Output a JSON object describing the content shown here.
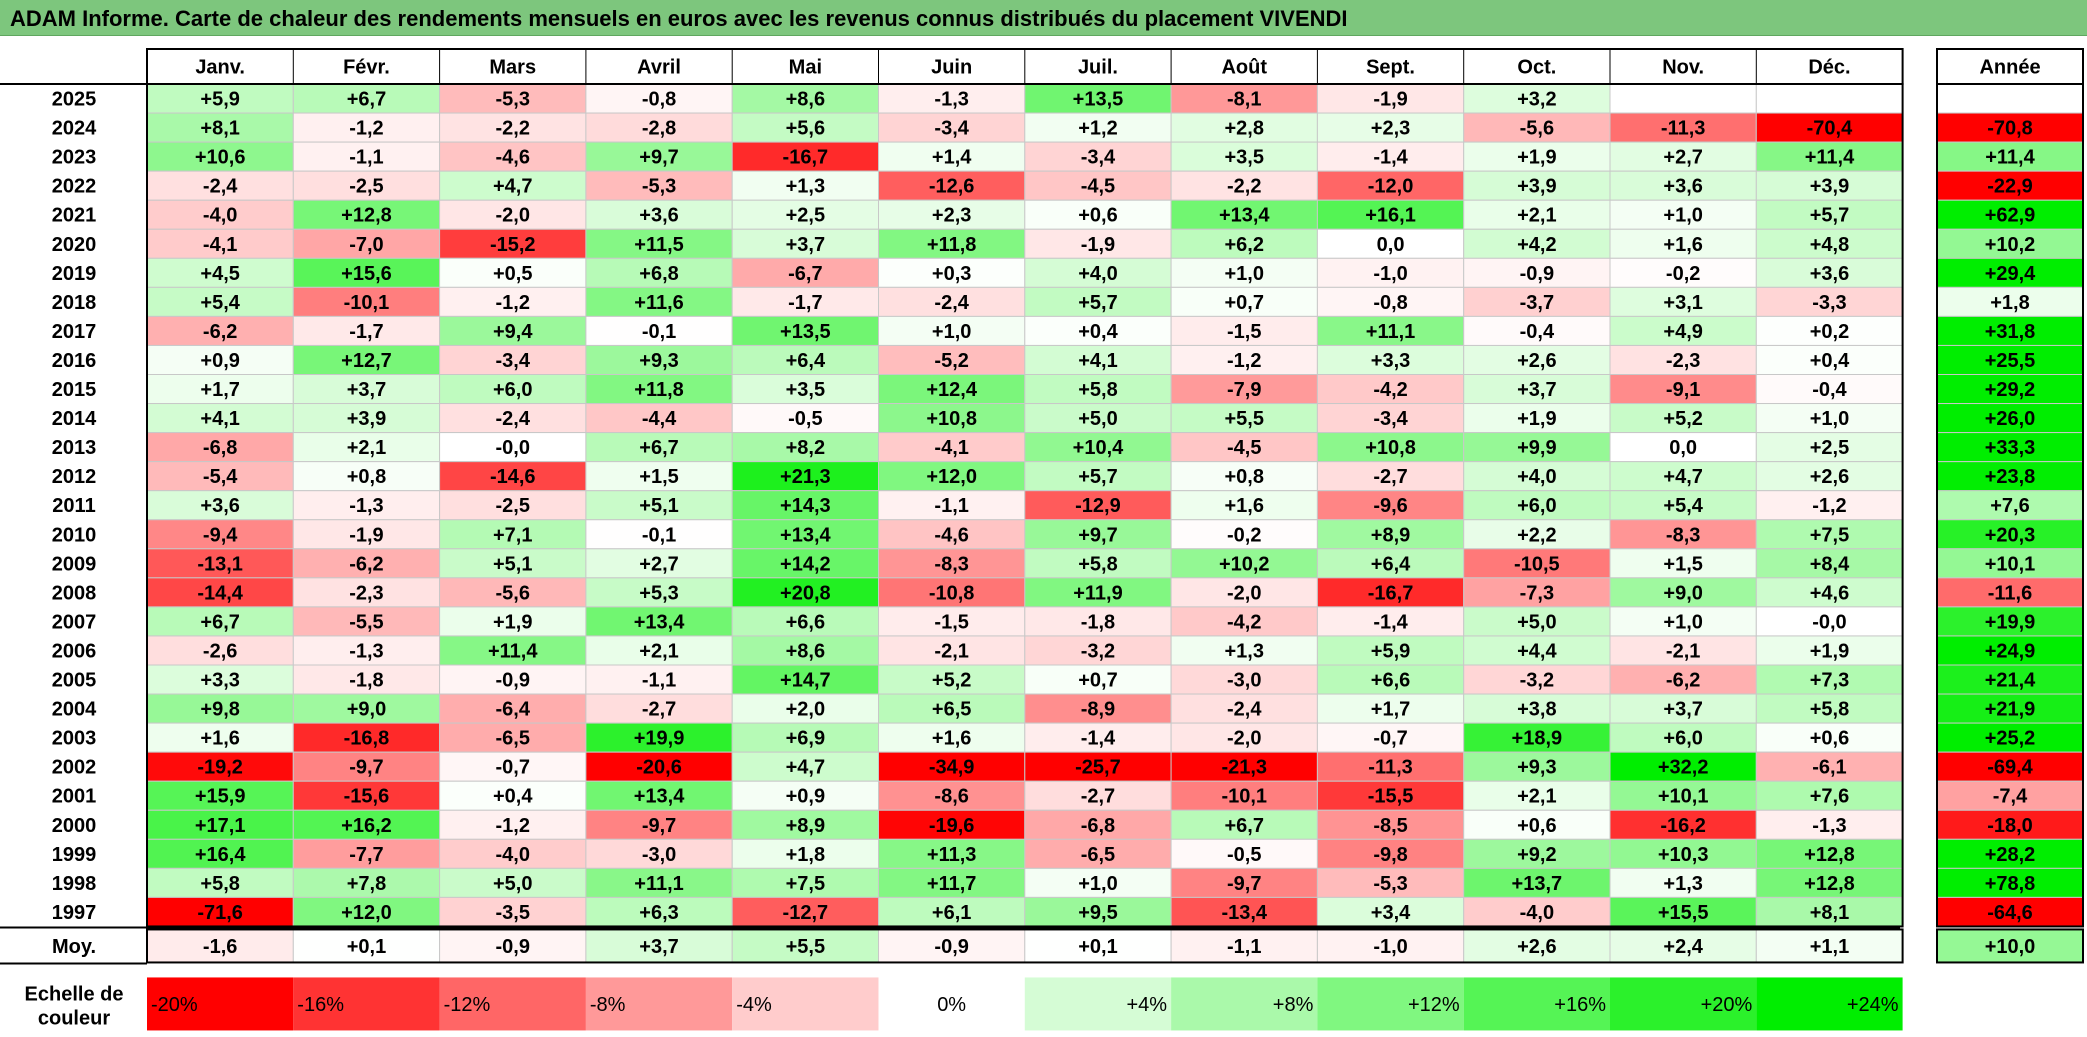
{
  "title": "ADAM Informe. Carte de chaleur des rendements mensuels en euros avec les revenus connus distribués du placement VIVENDI",
  "months": [
    "Janv.",
    "Févr.",
    "Mars",
    "Avril",
    "Mai",
    "Juin",
    "Juil.",
    "Août",
    "Sept.",
    "Oct.",
    "Nov.",
    "Déc."
  ],
  "year_header": "Année",
  "avg_label": "Moy.",
  "scale_label_line1": "Echelle de",
  "scale_label_line2": "couleur",
  "colors": {
    "title_bar": "#7dc67d",
    "negative_max": "#ff0000",
    "neutral": "#ffffff",
    "positive_max": "#00ee00"
  },
  "chart_data": {
    "type": "heatmap",
    "color_scale": {
      "min": -20,
      "max": 24,
      "steps": [
        -20,
        -16,
        -12,
        -8,
        -4,
        0,
        4,
        8,
        12,
        16,
        20,
        24
      ],
      "labels": [
        "-20%",
        "-16%",
        "-12%",
        "-8%",
        "-4%",
        "0%",
        "+4%",
        "+8%",
        "+12%",
        "+16%",
        "+20%",
        "+24%"
      ]
    },
    "rows": [
      {
        "year": "2025",
        "values": [
          "+5,9",
          "+6,7",
          "-5,3",
          "-0,8",
          "+8,6",
          "-1,3",
          "+13,5",
          "-8,1",
          "-1,9",
          "+3,2",
          "",
          ""
        ],
        "annual": ""
      },
      {
        "year": "2024",
        "values": [
          "+8,1",
          "-1,2",
          "-2,2",
          "-2,8",
          "+5,6",
          "-3,4",
          "+1,2",
          "+2,8",
          "+2,3",
          "-5,6",
          "-11,3",
          "-70,4"
        ],
        "annual": "-70,8"
      },
      {
        "year": "2023",
        "values": [
          "+10,6",
          "-1,1",
          "-4,6",
          "+9,7",
          "-16,7",
          "+1,4",
          "-3,4",
          "+3,5",
          "-1,4",
          "+1,9",
          "+2,7",
          "+11,4"
        ],
        "annual": "+11,4"
      },
      {
        "year": "2022",
        "values": [
          "-2,4",
          "-2,5",
          "+4,7",
          "-5,3",
          "+1,3",
          "-12,6",
          "-4,5",
          "-2,2",
          "-12,0",
          "+3,9",
          "+3,6",
          "+3,9"
        ],
        "annual": "-22,9"
      },
      {
        "year": "2021",
        "values": [
          "-4,0",
          "+12,8",
          "-2,0",
          "+3,6",
          "+2,5",
          "+2,3",
          "+0,6",
          "+13,4",
          "+16,1",
          "+2,1",
          "+1,0",
          "+5,7"
        ],
        "annual": "+62,9"
      },
      {
        "year": "2020",
        "values": [
          "-4,1",
          "-7,0",
          "-15,2",
          "+11,5",
          "+3,7",
          "+11,8",
          "-1,9",
          "+6,2",
          "0,0",
          "+4,2",
          "+1,6",
          "+4,8"
        ],
        "annual": "+10,2"
      },
      {
        "year": "2019",
        "values": [
          "+4,5",
          "+15,6",
          "+0,5",
          "+6,8",
          "-6,7",
          "+0,3",
          "+4,0",
          "+1,0",
          "-1,0",
          "-0,9",
          "-0,2",
          "+3,6"
        ],
        "annual": "+29,4"
      },
      {
        "year": "2018",
        "values": [
          "+5,4",
          "-10,1",
          "-1,2",
          "+11,6",
          "-1,7",
          "-2,4",
          "+5,7",
          "+0,7",
          "-0,8",
          "-3,7",
          "+3,1",
          "-3,3"
        ],
        "annual": "+1,8"
      },
      {
        "year": "2017",
        "values": [
          "-6,2",
          "-1,7",
          "+9,4",
          "-0,1",
          "+13,5",
          "+1,0",
          "+0,4",
          "-1,5",
          "+11,1",
          "-0,4",
          "+4,9",
          "+0,2"
        ],
        "annual": "+31,8"
      },
      {
        "year": "2016",
        "values": [
          "+0,9",
          "+12,7",
          "-3,4",
          "+9,3",
          "+6,4",
          "-5,2",
          "+4,1",
          "-1,2",
          "+3,3",
          "+2,6",
          "-2,3",
          "+0,4"
        ],
        "annual": "+25,5"
      },
      {
        "year": "2015",
        "values": [
          "+1,7",
          "+3,7",
          "+6,0",
          "+11,8",
          "+3,5",
          "+12,4",
          "+5,8",
          "-7,9",
          "-4,2",
          "+3,7",
          "-9,1",
          "-0,4"
        ],
        "annual": "+29,2"
      },
      {
        "year": "2014",
        "values": [
          "+4,1",
          "+3,9",
          "-2,4",
          "-4,4",
          "-0,5",
          "+10,8",
          "+5,0",
          "+5,5",
          "-3,4",
          "+1,9",
          "+5,2",
          "+1,0"
        ],
        "annual": "+26,0"
      },
      {
        "year": "2013",
        "values": [
          "-6,8",
          "+2,1",
          "-0,0",
          "+6,7",
          "+8,2",
          "-4,1",
          "+10,4",
          "-4,5",
          "+10,8",
          "+9,9",
          "0,0",
          "+2,5"
        ],
        "annual": "+33,3"
      },
      {
        "year": "2012",
        "values": [
          "-5,4",
          "+0,8",
          "-14,6",
          "+1,5",
          "+21,3",
          "+12,0",
          "+5,7",
          "+0,8",
          "-2,7",
          "+4,0",
          "+4,7",
          "+2,6"
        ],
        "annual": "+23,8"
      },
      {
        "year": "2011",
        "values": [
          "+3,6",
          "-1,3",
          "-2,5",
          "+5,1",
          "+14,3",
          "-1,1",
          "-12,9",
          "+1,6",
          "-9,6",
          "+6,0",
          "+5,4",
          "-1,2"
        ],
        "annual": "+7,6"
      },
      {
        "year": "2010",
        "values": [
          "-9,4",
          "-1,9",
          "+7,1",
          "-0,1",
          "+13,4",
          "-4,6",
          "+9,7",
          "-0,2",
          "+8,9",
          "+2,2",
          "-8,3",
          "+7,5"
        ],
        "annual": "+20,3"
      },
      {
        "year": "2009",
        "values": [
          "-13,1",
          "-6,2",
          "+5,1",
          "+2,7",
          "+14,2",
          "-8,3",
          "+5,8",
          "+10,2",
          "+6,4",
          "-10,5",
          "+1,5",
          "+8,4"
        ],
        "annual": "+10,1"
      },
      {
        "year": "2008",
        "values": [
          "-14,4",
          "-2,3",
          "-5,6",
          "+5,3",
          "+20,8",
          "-10,8",
          "+11,9",
          "-2,0",
          "-16,7",
          "-7,3",
          "+9,0",
          "+4,6"
        ],
        "annual": "-11,6"
      },
      {
        "year": "2007",
        "values": [
          "+6,7",
          "-5,5",
          "+1,9",
          "+13,4",
          "+6,6",
          "-1,5",
          "-1,8",
          "-4,2",
          "-1,4",
          "+5,0",
          "+1,0",
          "-0,0"
        ],
        "annual": "+19,9"
      },
      {
        "year": "2006",
        "values": [
          "-2,6",
          "-1,3",
          "+11,4",
          "+2,1",
          "+8,6",
          "-2,1",
          "-3,2",
          "+1,3",
          "+5,9",
          "+4,4",
          "-2,1",
          "+1,9"
        ],
        "annual": "+24,9"
      },
      {
        "year": "2005",
        "values": [
          "+3,3",
          "-1,8",
          "-0,9",
          "-1,1",
          "+14,7",
          "+5,2",
          "+0,7",
          "-3,0",
          "+6,6",
          "-3,2",
          "-6,2",
          "+7,3"
        ],
        "annual": "+21,4"
      },
      {
        "year": "2004",
        "values": [
          "+9,8",
          "+9,0",
          "-6,4",
          "-2,7",
          "+2,0",
          "+6,5",
          "-8,9",
          "-2,4",
          "+1,7",
          "+3,8",
          "+3,7",
          "+5,8"
        ],
        "annual": "+21,9"
      },
      {
        "year": "2003",
        "values": [
          "+1,6",
          "-16,8",
          "-6,5",
          "+19,9",
          "+6,9",
          "+1,6",
          "-1,4",
          "-2,0",
          "-0,7",
          "+18,9",
          "+6,0",
          "+0,6"
        ],
        "annual": "+25,2"
      },
      {
        "year": "2002",
        "values": [
          "-19,2",
          "-9,7",
          "-0,7",
          "-20,6",
          "+4,7",
          "-34,9",
          "-25,7",
          "-21,3",
          "-11,3",
          "+9,3",
          "+32,2",
          "-6,1"
        ],
        "annual": "-69,4"
      },
      {
        "year": "2001",
        "values": [
          "+15,9",
          "-15,6",
          "+0,4",
          "+13,4",
          "+0,9",
          "-8,6",
          "-2,7",
          "-10,1",
          "-15,5",
          "+2,1",
          "+10,1",
          "+7,6"
        ],
        "annual": "-7,4"
      },
      {
        "year": "2000",
        "values": [
          "+17,1",
          "+16,2",
          "-1,2",
          "-9,7",
          "+8,9",
          "-19,6",
          "-6,8",
          "+6,7",
          "-8,5",
          "+0,6",
          "-16,2",
          "-1,3"
        ],
        "annual": "-18,0"
      },
      {
        "year": "1999",
        "values": [
          "+16,4",
          "-7,7",
          "-4,0",
          "-3,0",
          "+1,8",
          "+11,3",
          "-6,5",
          "-0,5",
          "-9,8",
          "+9,2",
          "+10,3",
          "+12,8"
        ],
        "annual": "+28,2"
      },
      {
        "year": "1998",
        "values": [
          "+5,8",
          "+7,8",
          "+5,0",
          "+11,1",
          "+7,5",
          "+11,7",
          "+1,0",
          "-9,7",
          "-5,3",
          "+13,7",
          "+1,3",
          "+12,8"
        ],
        "annual": "+78,8"
      },
      {
        "year": "1997",
        "values": [
          "-71,6",
          "+12,0",
          "-3,5",
          "+6,3",
          "-12,7",
          "+6,1",
          "+9,5",
          "-13,4",
          "+3,4",
          "-4,0",
          "+15,5",
          "+8,1"
        ],
        "annual": "-64,6"
      }
    ],
    "averages": [
      "-1,6",
      "+0,1",
      "-0,9",
      "+3,7",
      "+5,5",
      "-0,9",
      "+0,1",
      "-1,1",
      "-1,0",
      "+2,6",
      "+2,4",
      "+1,1"
    ],
    "average_annual": "+10,0"
  }
}
